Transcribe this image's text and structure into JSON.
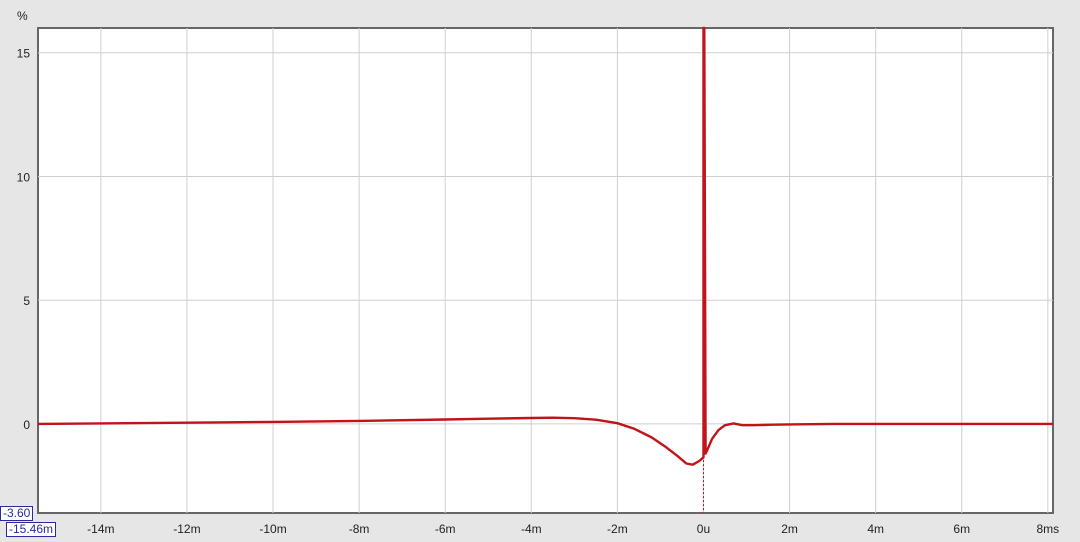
{
  "chart_data": {
    "type": "line",
    "title": "",
    "xlabel": "",
    "ylabel": "%",
    "x_unit_label": "ms",
    "xlim": [
      -15.46,
      8.12
    ],
    "ylim": [
      -3.6,
      16
    ],
    "x_ticks": [
      -14,
      -12,
      -10,
      -8,
      -6,
      -4,
      -2,
      0,
      2,
      4,
      6,
      8
    ],
    "x_tick_labels": [
      "-14m",
      "-12m",
      "-10m",
      "-8m",
      "-6m",
      "-4m",
      "-2m",
      "0u",
      "2m",
      "4m",
      "6m",
      "8ms"
    ],
    "y_ticks": [
      0,
      5,
      10,
      15
    ],
    "y_tick_labels": [
      "0",
      "5",
      "10",
      "15"
    ],
    "grid": true,
    "series": [
      {
        "color": "#c0141a",
        "x": [
          -15.46,
          -14,
          -12,
          -10,
          -8,
          -6,
          -5,
          -4,
          -3.5,
          -3,
          -2.5,
          -2,
          -1.6,
          -1.2,
          -0.9,
          -0.6,
          -0.4,
          -0.25,
          -0.1,
          0,
          0.001,
          0.02,
          0.05,
          0.1,
          0.2,
          0.35,
          0.5,
          0.7,
          0.9,
          1.2,
          1.6,
          2,
          3,
          4,
          6,
          8.12
        ],
        "y": [
          0,
          0.02,
          0.05,
          0.08,
          0.12,
          0.18,
          0.21,
          0.24,
          0.25,
          0.23,
          0.17,
          0.03,
          -0.2,
          -0.55,
          -0.9,
          -1.3,
          -1.6,
          -1.65,
          -1.5,
          -1.35,
          16,
          16,
          -1.2,
          -1.0,
          -0.6,
          -0.25,
          -0.05,
          0.02,
          -0.05,
          -0.05,
          -0.03,
          -0.02,
          0,
          0,
          0,
          0
        ]
      }
    ],
    "marker": {
      "x": 0,
      "style": "dashed"
    },
    "cursor_readout": {
      "y_value": "-3.60",
      "x_value": "-15.46m"
    }
  }
}
